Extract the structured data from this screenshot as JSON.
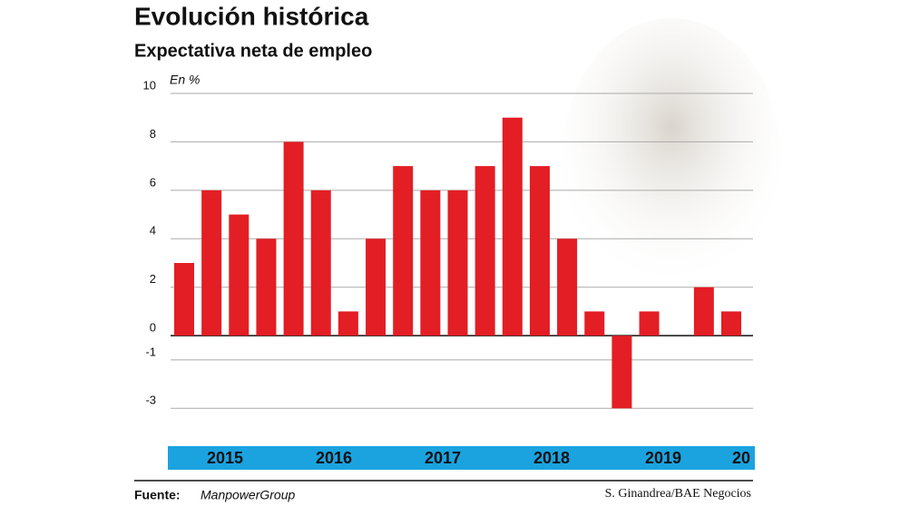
{
  "chart_data": {
    "type": "bar",
    "title": "Evolución histórica",
    "subtitle": "Expectativa neta de empleo",
    "y_unit": "En %",
    "categories": [
      null,
      null,
      null,
      null,
      null,
      null,
      null,
      null,
      null,
      null,
      null,
      null,
      null,
      null,
      null,
      null,
      null,
      null,
      null,
      null,
      null
    ],
    "values": [
      3,
      6,
      5,
      4,
      8,
      6,
      1,
      4,
      7,
      6,
      6,
      7,
      9,
      7,
      4,
      1,
      -3,
      1,
      0,
      2,
      1
    ],
    "color": "#e31e24",
    "ylim": [
      -4,
      10
    ],
    "yticks": [
      10,
      8,
      6,
      4,
      2,
      0,
      -1,
      -3
    ],
    "grid": true,
    "year_labels": [
      "2015",
      "2016",
      "2017",
      "2018",
      "2019",
      "20"
    ],
    "source_label": "Fuente:",
    "source": "ManpowerGroup",
    "credit": "S. Ginandrea/BAE Negocios"
  }
}
